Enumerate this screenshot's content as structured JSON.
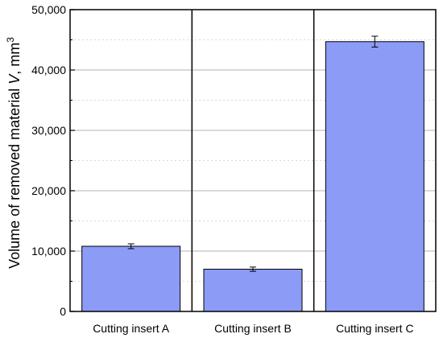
{
  "chart_data": {
    "type": "bar",
    "categories": [
      "Cutting insert A",
      "Cutting insert B",
      "Cutting insert C"
    ],
    "values": [
      10800,
      7000,
      44700
    ],
    "errors": [
      400,
      350,
      900
    ],
    "ylabel": {
      "prefix": "Volume of removed material ",
      "var": "V",
      "mid": ", mm",
      "sup": "3"
    },
    "ylim": [
      0,
      50000
    ],
    "yticks": [
      "0",
      "10,000",
      "20,000",
      "30,000",
      "40,000",
      "50,000"
    ],
    "ytick_values": [
      0,
      10000,
      20000,
      30000,
      40000,
      50000
    ],
    "minor_tick_values": [
      5000,
      15000,
      25000,
      35000,
      45000
    ],
    "grid": true,
    "bar_color": "#8c9bf6",
    "bar_edge_color": "#000000",
    "grid_color": "#b3b3b3",
    "minor_grid_color": "#d9d9d9"
  }
}
